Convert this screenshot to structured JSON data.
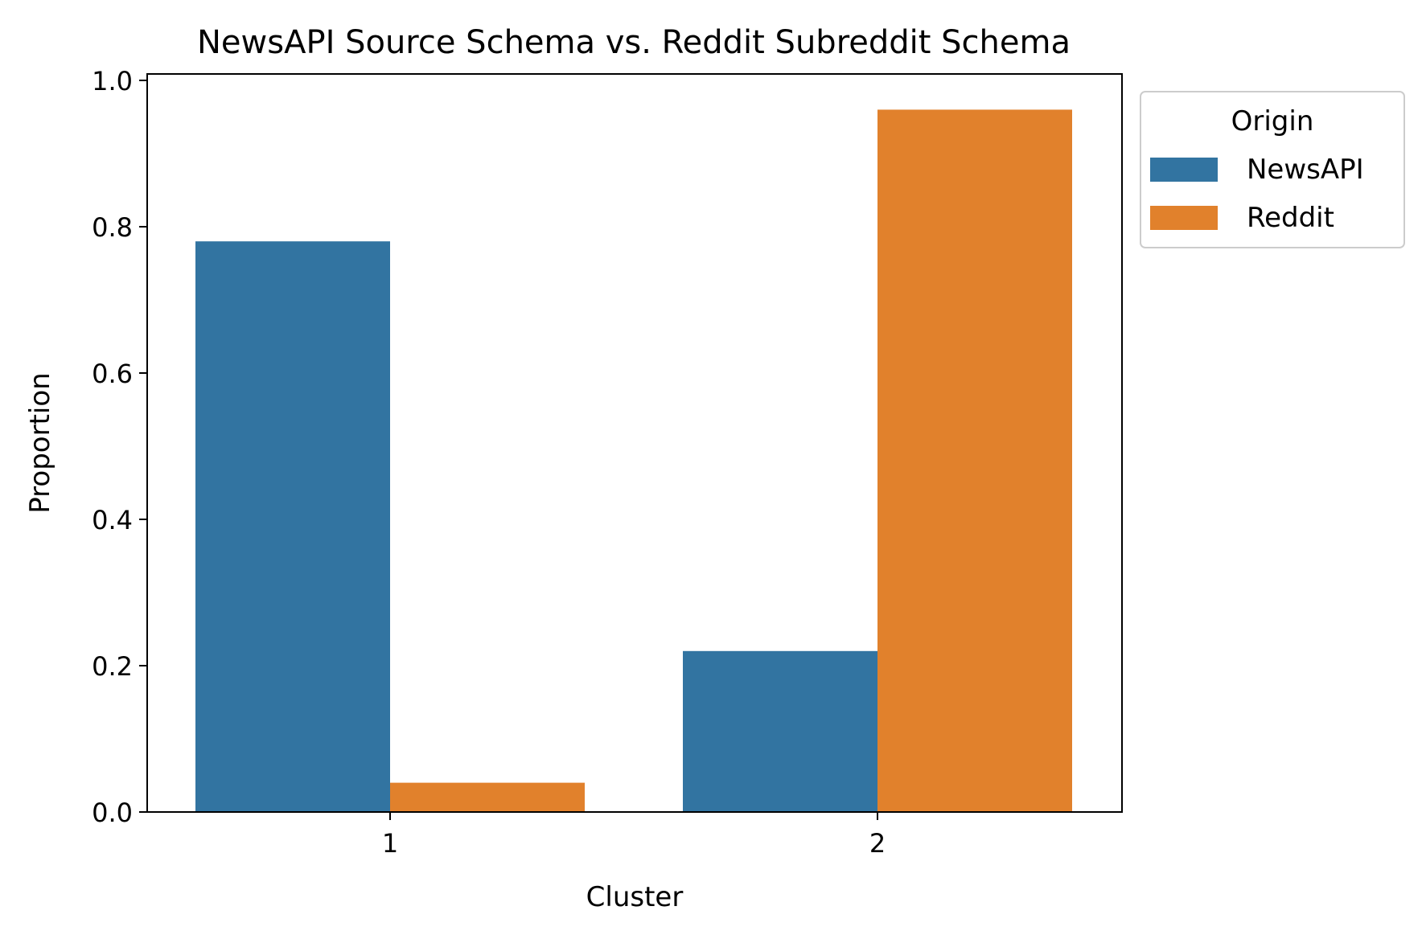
{
  "chart_data": {
    "type": "bar",
    "title": "NewsAPI Source Schema vs. Reddit Subreddit Schema",
    "xlabel": "Cluster",
    "ylabel": "Proportion",
    "categories": [
      "1",
      "2"
    ],
    "ylim": [
      0,
      1.0
    ],
    "yticks": [
      "0.0",
      "0.2",
      "0.4",
      "0.6",
      "0.8",
      "1.0"
    ],
    "grid": false,
    "legend": {
      "title": "Origin",
      "placement": "outside-upper-right"
    },
    "series": [
      {
        "name": "NewsAPI",
        "color": "#3274a1",
        "values": [
          0.78,
          0.22
        ]
      },
      {
        "name": "Reddit",
        "color": "#e1812c",
        "values": [
          0.04,
          0.96
        ]
      }
    ]
  }
}
